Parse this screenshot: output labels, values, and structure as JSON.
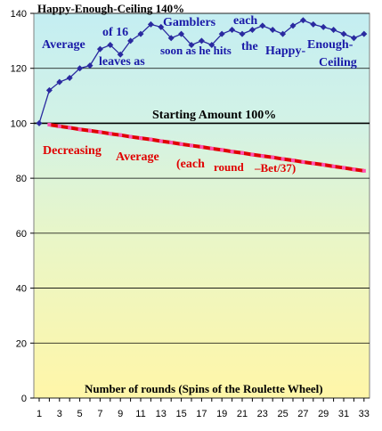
{
  "chart_data": {
    "type": "line",
    "categories": [
      "1",
      null,
      "3",
      null,
      "5",
      null,
      "7",
      null,
      "9",
      null,
      "11",
      null,
      "13",
      null,
      "15",
      null,
      "17",
      null,
      "19",
      null,
      "21",
      null,
      "23",
      null,
      "25",
      null,
      "27",
      null,
      "29",
      null,
      "31",
      null,
      "33"
    ],
    "series": [
      {
        "color": "#2a2aa0",
        "values": [
          100,
          112,
          115,
          116.5,
          120,
          121,
          127,
          128.5,
          125,
          130,
          132.5,
          136,
          135,
          131,
          132.5,
          128.5,
          130,
          128.5,
          132.5,
          134,
          132.5,
          134,
          135.5,
          134,
          132.5,
          135.5,
          137.5,
          136,
          135,
          134,
          132.5,
          131,
          132.5
        ]
      },
      {
        "color": "#e00000",
        "values": [
          null,
          99.5,
          98.9,
          98.4,
          97.8,
          97.3,
          96.8,
          96.2,
          95.7,
          95.1,
          94.6,
          94.1,
          93.5,
          93.0,
          92.4,
          91.9,
          91.4,
          90.8,
          90.3,
          89.7,
          89.2,
          88.6,
          88.1,
          87.6,
          87.0,
          86.5,
          85.9,
          85.4,
          84.9,
          84.3,
          83.8,
          83.2,
          82.7
        ]
      }
    ],
    "ylim": [
      0,
      140
    ],
    "yticks": [
      0,
      20,
      40,
      60,
      80,
      100,
      120,
      140
    ],
    "grid": true,
    "xlabel": "Number of rounds (Spins of the Roulette Wheel)",
    "annotations": [
      {
        "text": "Happy-Enough-Ceiling  140%",
        "color": "#000000"
      },
      {
        "text": "Average",
        "color": "#1a1aa8"
      },
      {
        "text": "of 16",
        "color": "#1a1aa8"
      },
      {
        "text": "leaves as",
        "color": "#1a1aa8"
      },
      {
        "text": "Gamblers",
        "color": "#1a1aa8"
      },
      {
        "text": "soon as he hits",
        "color": "#1a1aa8"
      },
      {
        "text": "each",
        "color": "#1a1aa8"
      },
      {
        "text": "the",
        "color": "#1a1aa8"
      },
      {
        "text": "Happy-",
        "color": "#1a1aa8"
      },
      {
        "text": "Enough-",
        "color": "#1a1aa8"
      },
      {
        "text": "Ceiling",
        "color": "#1a1aa8"
      },
      {
        "text": "Starting Amount 100%",
        "color": "#000000"
      },
      {
        "text": "Decreasing",
        "color": "#e00000"
      },
      {
        "text": "Average",
        "color": "#e00000"
      },
      {
        "text": "(each",
        "color": "#e00000"
      },
      {
        "text": "round",
        "color": "#e00000"
      },
      {
        "text": "–Bet/37)",
        "color": "#e00000"
      }
    ]
  }
}
